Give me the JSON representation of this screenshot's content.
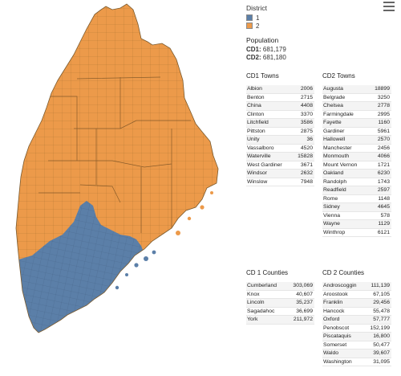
{
  "legend": {
    "title": "District",
    "items": [
      {
        "label": "1",
        "color": "#5b7fa8"
      },
      {
        "label": "2",
        "color": "#ec9a4a"
      }
    ]
  },
  "population": {
    "title": "Population",
    "cd1_label": "CD1:",
    "cd1_value": "681,179",
    "cd2_label": "CD2:",
    "cd2_value": "681,180"
  },
  "cd1_towns": {
    "title": "CD1 Towns",
    "rows": [
      {
        "name": "Albion",
        "value": "2006"
      },
      {
        "name": "Benton",
        "value": "2715"
      },
      {
        "name": "China",
        "value": "4408"
      },
      {
        "name": "Clinton",
        "value": "3370"
      },
      {
        "name": "Litchfield",
        "value": "3586"
      },
      {
        "name": "Pittston",
        "value": "2875"
      },
      {
        "name": "Unity",
        "value": "36"
      },
      {
        "name": "Vassalboro",
        "value": "4520"
      },
      {
        "name": "Waterville",
        "value": "15828"
      },
      {
        "name": "West Gardiner",
        "value": "3671"
      },
      {
        "name": "Windsor",
        "value": "2632"
      },
      {
        "name": "Winslow",
        "value": "7948"
      }
    ]
  },
  "cd2_towns": {
    "title": "CD2 Towns",
    "rows": [
      {
        "name": "Augusta",
        "value": "18899"
      },
      {
        "name": "Belgrade",
        "value": "3250"
      },
      {
        "name": "Chelsea",
        "value": "2778"
      },
      {
        "name": "Farmingdale",
        "value": "2995"
      },
      {
        "name": "Fayette",
        "value": "1160"
      },
      {
        "name": "Gardiner",
        "value": "5961"
      },
      {
        "name": "Hallowell",
        "value": "2570"
      },
      {
        "name": "Manchester",
        "value": "2456"
      },
      {
        "name": "Monmouth",
        "value": "4066"
      },
      {
        "name": "Mount Vernon",
        "value": "1721"
      },
      {
        "name": "Oakland",
        "value": "6230"
      },
      {
        "name": "Randolph",
        "value": "1743"
      },
      {
        "name": "Readfield",
        "value": "2597"
      },
      {
        "name": "Rome",
        "value": "1148"
      },
      {
        "name": "Sidney",
        "value": "4645"
      },
      {
        "name": "Vienna",
        "value": "578"
      },
      {
        "name": "Wayne",
        "value": "1129"
      },
      {
        "name": "Winthrop",
        "value": "6121"
      }
    ]
  },
  "cd1_counties": {
    "title": "CD 1 Counties",
    "rows": [
      {
        "name": "Cumberland",
        "value": "303,069"
      },
      {
        "name": "Knox",
        "value": "40,607"
      },
      {
        "name": "Lincoln",
        "value": "35,237"
      },
      {
        "name": "Sagadahoc",
        "value": "36,699"
      },
      {
        "name": "York",
        "value": "211,972"
      }
    ]
  },
  "cd2_counties": {
    "title": "CD 2 Counties",
    "rows": [
      {
        "name": "Androscoggin",
        "value": "111,139"
      },
      {
        "name": "Aroostook",
        "value": "67,105"
      },
      {
        "name": "Franklin",
        "value": "29,456"
      },
      {
        "name": "Hancock",
        "value": "55,478"
      },
      {
        "name": "Oxford",
        "value": "57,777"
      },
      {
        "name": "Penobscot",
        "value": "152,199"
      },
      {
        "name": "Piscataquis",
        "value": "16,800"
      },
      {
        "name": "Somerset",
        "value": "50,477"
      },
      {
        "name": "Waldo",
        "value": "39,607"
      },
      {
        "name": "Washington",
        "value": "31,095"
      }
    ]
  },
  "map": {
    "district1_color": "#5b7fa8",
    "district2_color": "#ec9a4a",
    "border_color": "#7a5a2e"
  },
  "menu": {
    "icon": "hamburger-menu-icon"
  }
}
